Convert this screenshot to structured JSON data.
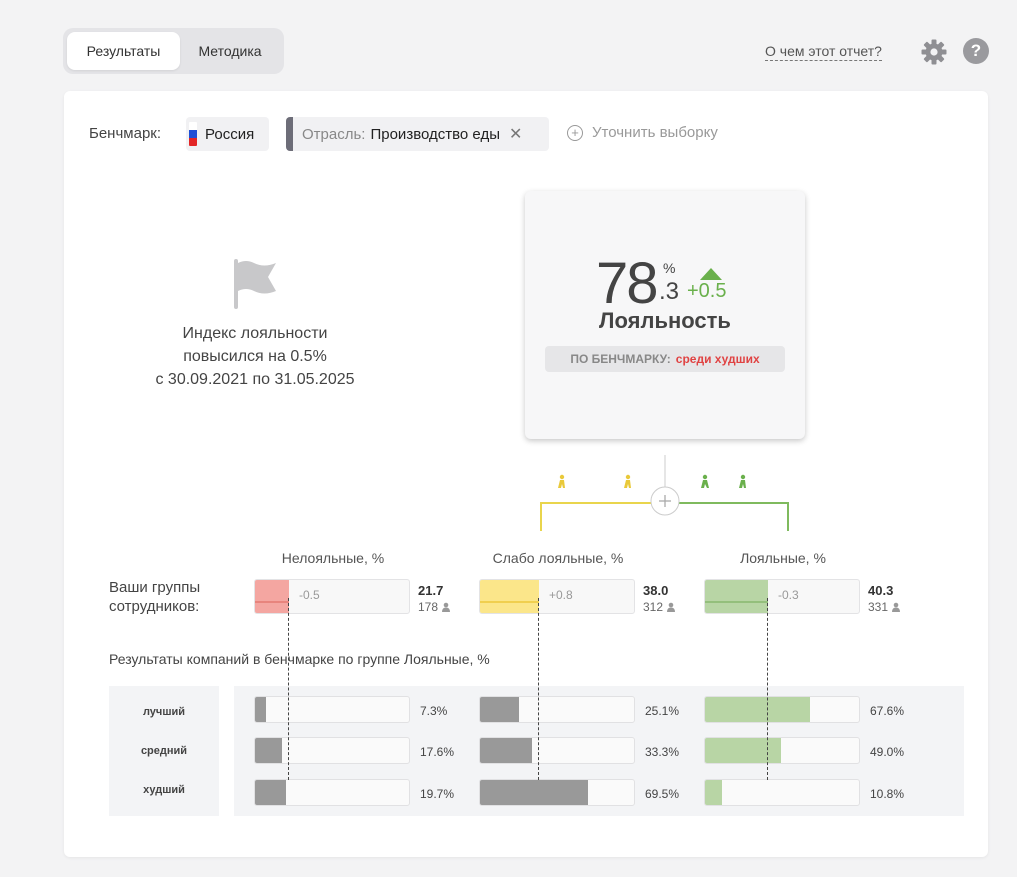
{
  "tabs": [
    {
      "label": "Результаты",
      "active": true
    },
    {
      "label": "Методика",
      "active": false
    }
  ],
  "header": {
    "about_link": "О чем этот отчет?",
    "settings_icon": "gear-icon",
    "help_icon": "help-icon",
    "help_glyph": "?"
  },
  "filters": {
    "benchmark_label": "Бенчмарк:",
    "country": "Россия",
    "industry_prefix": "Отрасль:",
    "industry_value": "Производство еды",
    "remove_glyph": "✕",
    "refine_label": "Уточнить выборку",
    "refine_glyph": "+"
  },
  "message": {
    "line1": "Индекс лояльности",
    "line2": "повысился на 0.5%",
    "line3": "с 30.09.2021 по 31.05.2025"
  },
  "score": {
    "integer": "78",
    "decimal": ".3",
    "percent_sign": "%",
    "delta": "+0.5",
    "label": "Лояльность",
    "benchmark_prefix": "ПО БЕНЧМАРКУ:",
    "benchmark_status": "среди худших"
  },
  "colors": {
    "disloyal": "#f4a6a1",
    "disloyal_line": "#e8847d",
    "weak": "#fbe68a",
    "weak_line": "#f0cf4f",
    "loyal": "#b8d5a5",
    "loyal_line": "#94bf7c",
    "bench_grey": "#999999",
    "bench_loyal": "#b8d5a5",
    "up": "#6ab04c",
    "bad": "#e04343"
  },
  "groups_label_line1": "Ваши группы",
  "groups_label_line2": "сотрудников:",
  "groups": [
    {
      "header": "Нелояльные, %",
      "value": 21.7,
      "value_text": "21.7",
      "delta": "-0.5",
      "count": "178"
    },
    {
      "header": "Слабо лояльные, %",
      "value": 38.0,
      "value_text": "38.0",
      "delta": "+0.8",
      "count": "312"
    },
    {
      "header": "Лояльные, %",
      "value": 40.3,
      "value_text": "40.3",
      "delta": "-0.3",
      "count": "331"
    }
  ],
  "benchmark_title": "Результаты компаний в бенчмарке по группе Лояльные, %",
  "benchmark_rows": [
    {
      "label": "лучший",
      "values": [
        7.3,
        25.1,
        67.6
      ],
      "texts": [
        "7.3%",
        "25.1%",
        "67.6%"
      ]
    },
    {
      "label": "средний",
      "values": [
        17.6,
        33.3,
        49.0
      ],
      "texts": [
        "17.6%",
        "33.3%",
        "49.0%"
      ]
    },
    {
      "label": "худший",
      "values": [
        19.7,
        69.5,
        10.8
      ],
      "texts": [
        "19.7%",
        "69.5%",
        "10.8%"
      ]
    }
  ]
}
